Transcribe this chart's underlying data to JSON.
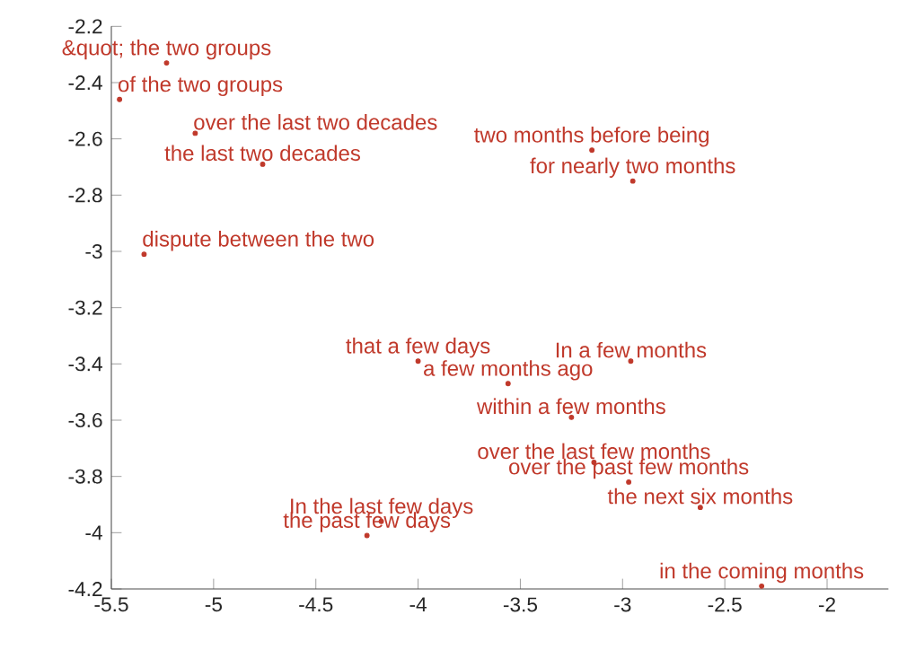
{
  "chart_data": {
    "type": "scatter",
    "xlim": [
      -5.5,
      -1.7
    ],
    "ylim": [
      -4.2,
      -2.2
    ],
    "xticks": [
      -5.5,
      -5,
      -4.5,
      -4,
      -3.5,
      -3,
      -2.5,
      -2
    ],
    "yticks": [
      -4.2,
      -4,
      -3.8,
      -3.6,
      -3.4,
      -3.2,
      -3,
      -2.8,
      -2.6,
      -2.4,
      -2.2
    ],
    "grid": false,
    "marker": "circle",
    "series": [
      {
        "color": "#c0392b",
        "x": [
          -5.23,
          -5.46,
          -5.09,
          -4.76,
          -3.15,
          -2.95,
          -5.34,
          -4.0,
          -2.96,
          -3.56,
          -3.25,
          -3.14,
          -2.97,
          -2.62,
          -4.18,
          -4.25,
          -2.32
        ],
        "values": [
          -2.33,
          -2.46,
          -2.58,
          -2.69,
          -2.64,
          -2.75,
          -3.01,
          -3.39,
          -3.39,
          -3.47,
          -3.59,
          -3.75,
          -3.82,
          -3.91,
          -3.96,
          -4.01,
          -4.19
        ],
        "value_labels": [
          "&quot; the two groups",
          "of the two groups",
          "over the last two decades",
          "the last two decades",
          "two months before being",
          "for nearly two months",
          "dispute between the two",
          "that a few days",
          "In a few months",
          "a few months ago",
          "within a few months",
          "over the last few months",
          "over the past few months",
          "the next six months",
          "In the last few days",
          "the past few days",
          "in the coming months"
        ]
      }
    ]
  }
}
